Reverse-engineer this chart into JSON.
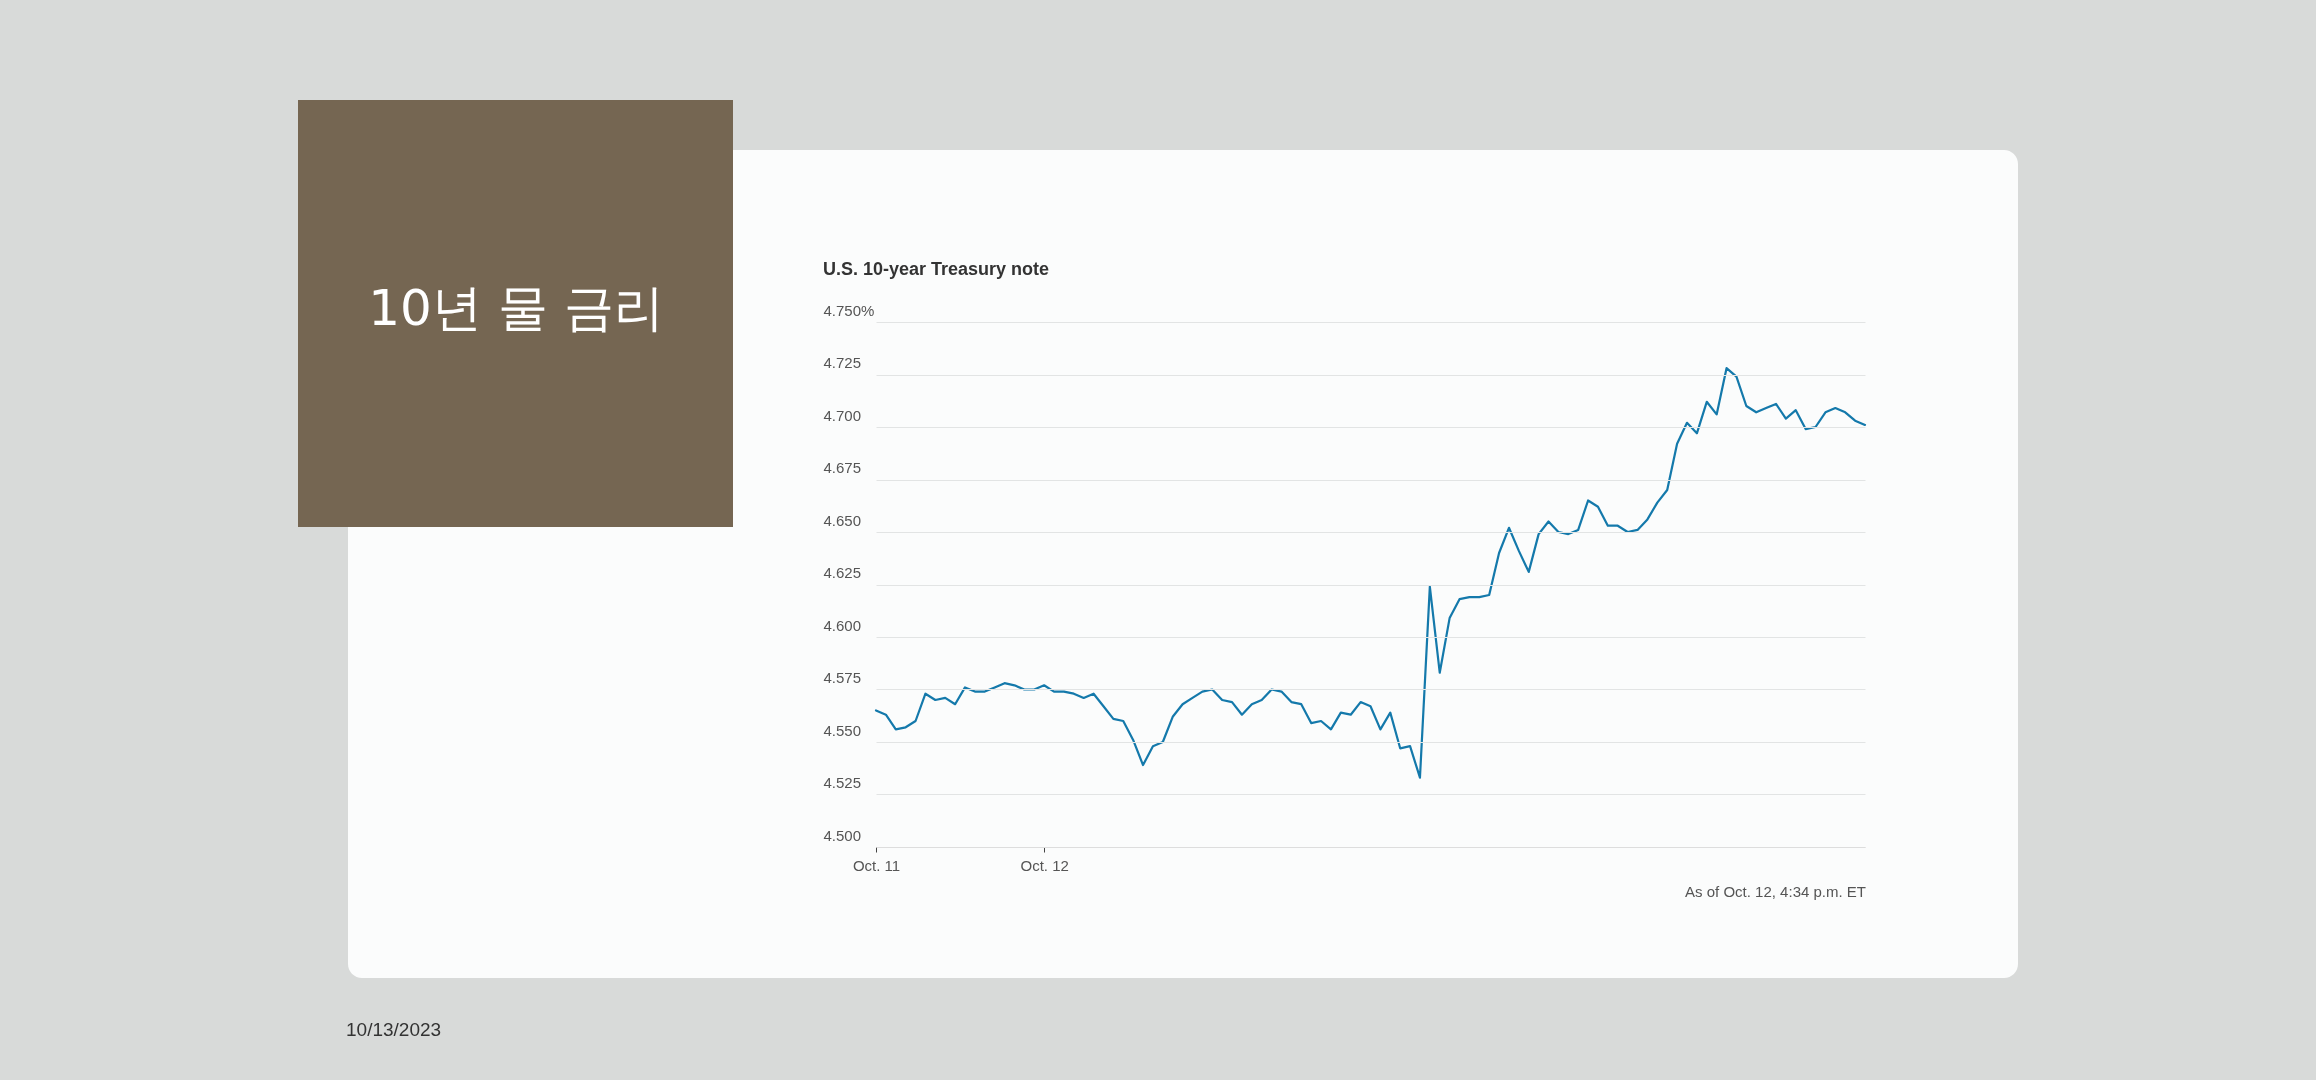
{
  "chart_data": {
    "type": "line",
    "title": "10년 물 금리",
    "subtitle": "U.S. 10-year Treasury note",
    "categories": [
      "Oct. 11",
      null,
      null,
      null,
      null,
      null,
      null,
      null,
      null,
      null,
      null,
      null,
      null,
      null,
      null,
      null,
      null,
      "Oct. 12",
      null,
      null,
      null,
      null,
      null,
      null,
      null,
      null,
      null,
      null,
      null,
      null,
      null,
      null,
      null,
      null,
      null,
      null,
      null,
      null,
      null,
      null,
      null,
      null,
      null,
      null,
      null,
      null,
      null,
      null,
      null,
      null,
      null,
      null,
      null,
      null,
      null,
      null,
      null,
      null,
      null,
      null,
      null,
      null,
      null,
      null,
      null,
      null,
      null,
      null,
      null,
      null,
      null,
      null,
      null,
      null,
      null,
      null,
      null,
      null,
      null,
      null,
      null,
      null,
      null,
      null,
      null,
      null,
      null,
      null,
      null,
      null,
      null,
      null,
      null,
      null,
      null,
      null,
      null,
      null,
      null,
      null,
      null
    ],
    "series": [
      {
        "color": "#1479ab",
        "values": [
          4.565,
          4.563,
          4.556,
          4.557,
          4.56,
          4.573,
          4.57,
          4.571,
          4.568,
          4.576,
          4.574,
          4.574,
          4.576,
          4.578,
          4.577,
          4.575,
          4.575,
          4.577,
          4.574,
          4.574,
          4.573,
          4.571,
          4.573,
          4.567,
          4.561,
          4.56,
          4.551,
          4.539,
          4.548,
          4.55,
          4.562,
          4.568,
          4.571,
          4.574,
          4.575,
          4.57,
          4.569,
          4.563,
          4.568,
          4.57,
          4.575,
          4.574,
          4.569,
          4.568,
          4.559,
          4.56,
          4.556,
          4.564,
          4.563,
          4.569,
          4.567,
          4.556,
          4.564,
          4.547,
          4.548,
          4.533,
          4.624,
          4.583,
          4.609,
          4.618,
          4.619,
          4.619,
          4.62,
          4.64,
          4.652,
          4.641,
          4.631,
          4.649,
          4.655,
          4.65,
          4.649,
          4.651,
          4.665,
          4.662,
          4.653,
          4.653,
          4.65,
          4.651,
          4.656,
          4.664,
          4.67,
          4.692,
          4.702,
          4.697,
          4.712,
          4.706,
          4.728,
          4.724,
          4.71,
          4.707,
          4.709,
          4.711,
          4.704,
          4.708,
          4.699,
          4.7,
          4.707,
          4.709,
          4.707,
          4.703,
          4.701
        ]
      }
    ],
    "ylim": [
      4.5,
      4.75
    ],
    "yticks": [
      {
        "value": 4.5,
        "label": "4.500"
      },
      {
        "value": 4.525,
        "label": "4.525"
      },
      {
        "value": 4.55,
        "label": "4.550"
      },
      {
        "value": 4.575,
        "label": "4.575"
      },
      {
        "value": 4.6,
        "label": "4.600"
      },
      {
        "value": 4.625,
        "label": "4.625"
      },
      {
        "value": 4.65,
        "label": "4.650"
      },
      {
        "value": 4.675,
        "label": "4.675"
      },
      {
        "value": 4.7,
        "label": "4.700"
      },
      {
        "value": 4.725,
        "label": "4.725"
      },
      {
        "value": 4.75,
        "label": "4.750%"
      }
    ],
    "grid": "y",
    "line_style": "solid",
    "annotations": [
      "As of Oct. 12, 4:34 p.m. ET",
      "10/13/2023"
    ]
  }
}
